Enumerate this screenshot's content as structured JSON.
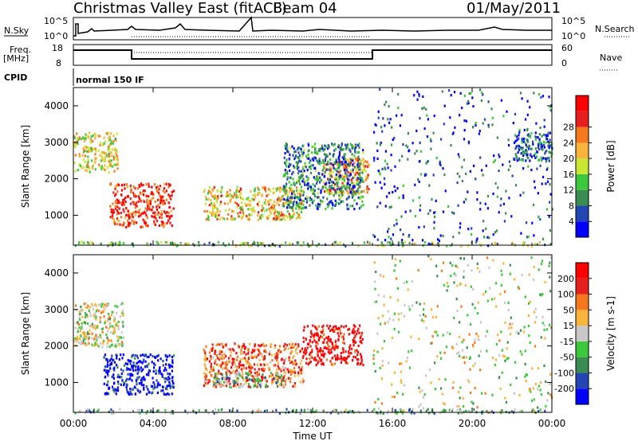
{
  "header": {
    "title": "Christmas Valley East (fitACF)",
    "beam": "Beam 04",
    "date": "01/May/2011"
  },
  "top_panels": {
    "nsky_label": "N.Sky",
    "nsearch_label": "N.Search",
    "nsky_ticks": [
      "10^5",
      "10^0"
    ],
    "nsearch_ticks": [
      "10^5",
      "10^0"
    ],
    "freq_label": "Freq.",
    "freq_unit": "[MHz]",
    "freq_ticks": [
      "18",
      "8"
    ],
    "nave_label": "Nave",
    "nave_ticks": [
      "60",
      "0"
    ],
    "cpid_label": "CPID",
    "cpid_text": "normal 150 IF"
  },
  "chart_data": [
    {
      "type": "heatmap",
      "name": "power-panel",
      "ylabel": "Slant Range [km]",
      "xlabel": "",
      "xticks": [
        "00:00",
        "04:00",
        "08:00",
        "12:00",
        "16:00",
        "20:00",
        "00:00"
      ],
      "yticks": [
        1000,
        2000,
        3000,
        4000
      ],
      "xlim_hours": [
        0,
        24
      ],
      "ylim_km": [
        180,
        4500
      ],
      "colorbar": {
        "label": "Power [dB]",
        "ticks": [
          "4",
          "8",
          "12",
          "16",
          "20",
          "24",
          "28"
        ],
        "colors": [
          "#0000ff",
          "#2346b4",
          "#3a8c50",
          "#3cc83c",
          "#c8e632",
          "#fab43c",
          "#f5781e",
          "#e61e1e",
          "#ff0000"
        ]
      },
      "regions": [
        {
          "t0": 0.0,
          "t1": 2.2,
          "r0": 2200,
          "r1": 3300,
          "level": 0.55
        },
        {
          "t0": 1.8,
          "t1": 5.0,
          "r0": 700,
          "r1": 1900,
          "level": 0.85
        },
        {
          "t0": 6.5,
          "t1": 11.5,
          "r0": 900,
          "r1": 1800,
          "level": 0.6
        },
        {
          "t0": 12.5,
          "t1": 14.8,
          "r0": 1600,
          "r1": 2600,
          "level": 0.7
        },
        {
          "t0": 10.5,
          "t1": 14.5,
          "r0": 1200,
          "r1": 3000,
          "level": 0.25
        },
        {
          "t0": 15.0,
          "t1": 24.0,
          "r0": 180,
          "r1": 4500,
          "level": 0.15
        },
        {
          "t0": 22.0,
          "t1": 24.0,
          "r0": 2500,
          "r1": 3300,
          "level": 0.2
        },
        {
          "t0": 0.0,
          "t1": 24.0,
          "r0": 180,
          "r1": 300,
          "level": 0.4
        }
      ]
    },
    {
      "type": "heatmap",
      "name": "velocity-panel",
      "ylabel": "Slant Range [km]",
      "xlabel": "Time UT",
      "xticks": [
        "00:00",
        "04:00",
        "08:00",
        "12:00",
        "16:00",
        "20:00",
        "00:00"
      ],
      "yticks": [
        1000,
        2000,
        3000,
        4000
      ],
      "xlim_hours": [
        0,
        24
      ],
      "ylim_km": [
        180,
        4500
      ],
      "colorbar": {
        "label": "Velocity [m s-1]",
        "ticks": [
          "200",
          "100",
          "50",
          "15",
          "-15",
          "-50",
          "-100",
          "-200"
        ],
        "colors": [
          "#0000ff",
          "#2346b4",
          "#3a8c50",
          "#3cc83c",
          "#c8c8c8",
          "#fab43c",
          "#f5781e",
          "#e61e1e",
          "#ff0000"
        ]
      },
      "regions": [
        {
          "t0": 0.0,
          "t1": 2.5,
          "r0": 2000,
          "r1": 3200,
          "level": 0.5
        },
        {
          "t0": 1.5,
          "t1": 5.0,
          "r0": 700,
          "r1": 1800,
          "level": 0.05
        },
        {
          "t0": 6.5,
          "t1": 11.5,
          "r0": 900,
          "r1": 2100,
          "level": 0.75
        },
        {
          "t0": 7.0,
          "t1": 10.5,
          "r0": 900,
          "r1": 1300,
          "level": 0.35
        },
        {
          "t0": 11.5,
          "t1": 14.5,
          "r0": 1500,
          "r1": 2600,
          "level": 0.95
        },
        {
          "t0": 15.0,
          "t1": 24.0,
          "r0": 180,
          "r1": 4500,
          "level": 0.5
        },
        {
          "t0": 0.0,
          "t1": 24.0,
          "r0": 180,
          "r1": 300,
          "level": 0.35
        }
      ]
    }
  ]
}
